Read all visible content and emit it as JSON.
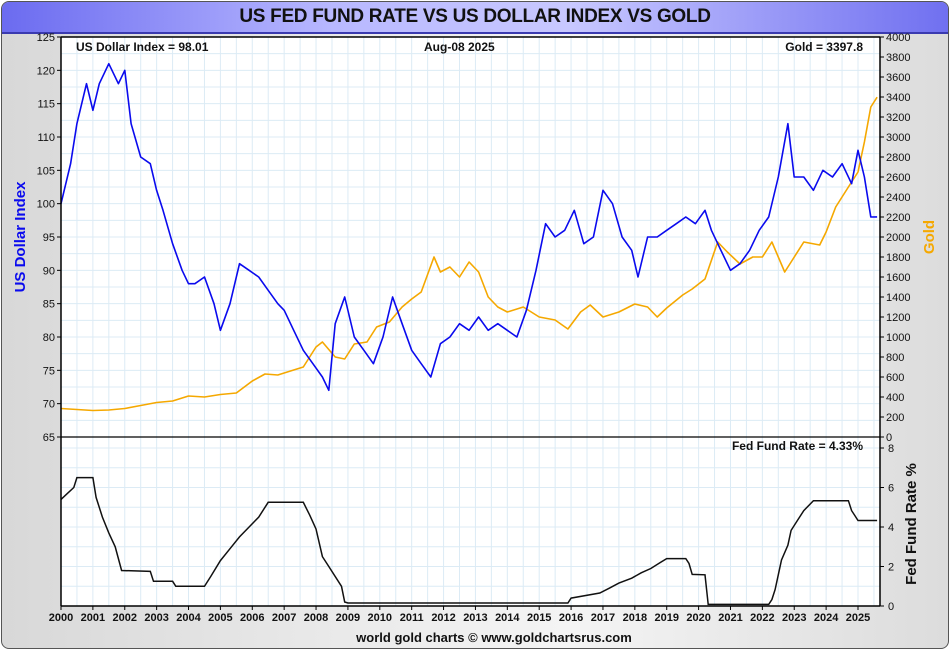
{
  "title": "US FED FUND RATE VS US DOLLAR INDEX VS GOLD",
  "footer": "world gold charts © www.goldchartsrus.com",
  "colors": {
    "dollar": "#0a0aee",
    "gold": "#f5a800",
    "fed": "#111111",
    "grid": "#dcebf5"
  },
  "chart_data": [
    {
      "type": "line",
      "title": "US Dollar Index vs Gold",
      "date_label": "Aug-08  2025",
      "readouts": {
        "dollar": "US Dollar Index = 98.01",
        "gold": "Gold = 3397.8"
      },
      "ylabel_left": "US Dollar Index",
      "ylabel_right": "Gold",
      "ylim_left": [
        65,
        125
      ],
      "yticks_left": [
        "65",
        "70",
        "75",
        "80",
        "85",
        "90",
        "95",
        "100",
        "105",
        "110",
        "115",
        "120",
        "125"
      ],
      "ylim_right": [
        0,
        4000
      ],
      "yticks_right": [
        "0",
        "200",
        "400",
        "600",
        "800",
        "1000",
        "1200",
        "1400",
        "1600",
        "1800",
        "2000",
        "2200",
        "2400",
        "2600",
        "2800",
        "3000",
        "3200",
        "3400",
        "3600",
        "3800",
        "4000"
      ],
      "grid": true,
      "series": [
        {
          "name": "US Dollar Index",
          "axis": "left",
          "x": [
            2000.0,
            2000.3,
            2000.5,
            2000.8,
            2001.0,
            2001.2,
            2001.5,
            2001.8,
            2002.0,
            2002.2,
            2002.5,
            2002.8,
            2003.0,
            2003.2,
            2003.5,
            2003.8,
            2004.0,
            2004.2,
            2004.5,
            2004.8,
            2005.0,
            2005.3,
            2005.6,
            2005.9,
            2006.2,
            2006.5,
            2006.8,
            2007.0,
            2007.3,
            2007.6,
            2007.9,
            2008.2,
            2008.4,
            2008.6,
            2008.9,
            2009.2,
            2009.5,
            2009.8,
            2010.1,
            2010.4,
            2010.7,
            2011.0,
            2011.3,
            2011.6,
            2011.9,
            2012.2,
            2012.5,
            2012.8,
            2013.1,
            2013.4,
            2013.7,
            2014.0,
            2014.3,
            2014.6,
            2014.9,
            2015.2,
            2015.5,
            2015.8,
            2016.1,
            2016.4,
            2016.7,
            2017.0,
            2017.3,
            2017.6,
            2017.9,
            2018.1,
            2018.4,
            2018.7,
            2019.0,
            2019.3,
            2019.6,
            2019.9,
            2020.2,
            2020.4,
            2020.7,
            2021.0,
            2021.3,
            2021.6,
            2021.9,
            2022.2,
            2022.5,
            2022.8,
            2023.0,
            2023.3,
            2023.6,
            2023.9,
            2024.2,
            2024.5,
            2024.8,
            2025.0,
            2025.2,
            2025.4,
            2025.6
          ],
          "y": [
            100,
            106,
            112,
            118,
            114,
            118,
            121,
            118,
            120,
            112,
            107,
            106,
            102,
            99,
            94,
            90,
            88,
            88,
            89,
            85,
            81,
            85,
            91,
            90,
            89,
            87,
            85,
            84,
            81,
            78,
            76,
            74,
            72,
            82,
            86,
            80,
            78,
            76,
            80,
            86,
            82,
            78,
            76,
            74,
            79,
            80,
            82,
            81,
            83,
            81,
            82,
            81,
            80,
            84,
            90,
            97,
            95,
            96,
            99,
            94,
            95,
            102,
            100,
            95,
            93,
            89,
            95,
            95,
            96,
            97,
            98,
            97,
            99,
            96,
            93,
            90,
            91,
            93,
            96,
            98,
            104,
            112,
            104,
            104,
            102,
            105,
            104,
            106,
            103,
            108,
            104,
            98,
            98.01
          ]
        },
        {
          "name": "Gold",
          "axis": "right",
          "x": [
            2000.0,
            2000.5,
            2001.0,
            2001.5,
            2002.0,
            2002.5,
            2003.0,
            2003.5,
            2004.0,
            2004.5,
            2005.0,
            2005.5,
            2006.0,
            2006.4,
            2006.8,
            2007.2,
            2007.6,
            2008.0,
            2008.2,
            2008.6,
            2008.9,
            2009.2,
            2009.6,
            2009.9,
            2010.3,
            2010.7,
            2011.0,
            2011.3,
            2011.7,
            2011.9,
            2012.2,
            2012.5,
            2012.8,
            2013.1,
            2013.4,
            2013.7,
            2014.0,
            2014.5,
            2015.0,
            2015.5,
            2015.9,
            2016.3,
            2016.6,
            2017.0,
            2017.5,
            2018.0,
            2018.4,
            2018.7,
            2019.0,
            2019.5,
            2019.8,
            2020.2,
            2020.6,
            2020.9,
            2021.3,
            2021.7,
            2022.0,
            2022.3,
            2022.7,
            2022.9,
            2023.3,
            2023.8,
            2024.0,
            2024.3,
            2024.7,
            2025.0,
            2025.2,
            2025.4,
            2025.6
          ],
          "y": [
            285,
            275,
            265,
            270,
            285,
            315,
            345,
            360,
            410,
            400,
            425,
            440,
            560,
            630,
            620,
            660,
            700,
            900,
            950,
            800,
            780,
            930,
            950,
            1100,
            1150,
            1300,
            1380,
            1450,
            1800,
            1650,
            1700,
            1600,
            1750,
            1650,
            1400,
            1300,
            1250,
            1300,
            1200,
            1170,
            1080,
            1250,
            1320,
            1200,
            1250,
            1330,
            1300,
            1200,
            1290,
            1420,
            1480,
            1580,
            1950,
            1850,
            1730,
            1800,
            1800,
            1950,
            1650,
            1750,
            1950,
            1920,
            2050,
            2300,
            2500,
            2650,
            2950,
            3300,
            3397.8
          ]
        }
      ]
    },
    {
      "type": "line",
      "title": "Fed Fund Rate",
      "readout": "Fed Fund Rate = 4.33%",
      "ylabel": "Fed Fund Rate %",
      "ylim": [
        0,
        8
      ],
      "yticks": [
        "0",
        "2",
        "4",
        "6",
        "8"
      ],
      "xticks": [
        "2000",
        "2001",
        "2002",
        "2003",
        "2004",
        "2005",
        "2006",
        "2007",
        "2008",
        "2009",
        "2010",
        "2011",
        "2012",
        "2013",
        "2014",
        "2015",
        "2016",
        "2017",
        "2018",
        "2019",
        "2020",
        "2021",
        "2022",
        "2023",
        "2024",
        "2025"
      ],
      "grid": true,
      "series": [
        {
          "name": "Fed Fund Rate",
          "x": [
            2000.0,
            2000.2,
            2000.4,
            2000.5,
            2001.0,
            2001.1,
            2001.3,
            2001.5,
            2001.7,
            2001.9,
            2002.8,
            2002.9,
            2003.5,
            2003.6,
            2004.5,
            2004.7,
            2005.0,
            2005.3,
            2005.6,
            2005.9,
            2006.2,
            2006.5,
            2007.6,
            2007.8,
            2008.0,
            2008.2,
            2008.4,
            2008.8,
            2008.9,
            2009.0,
            2015.9,
            2016.0,
            2016.9,
            2017.2,
            2017.5,
            2017.9,
            2018.2,
            2018.5,
            2018.8,
            2019.0,
            2019.6,
            2019.7,
            2019.8,
            2020.2,
            2020.3,
            2022.2,
            2022.3,
            2022.4,
            2022.5,
            2022.6,
            2022.8,
            2022.9,
            2023.1,
            2023.3,
            2023.6,
            2024.7,
            2024.8,
            2024.9,
            2025.0,
            2025.6
          ],
          "y": [
            5.4,
            5.7,
            6.0,
            6.5,
            6.5,
            5.5,
            4.5,
            3.7,
            3.0,
            1.8,
            1.75,
            1.25,
            1.25,
            1.0,
            1.0,
            1.5,
            2.3,
            2.9,
            3.5,
            4.0,
            4.5,
            5.25,
            5.25,
            4.6,
            3.9,
            2.5,
            2.0,
            1.0,
            0.2,
            0.15,
            0.15,
            0.4,
            0.66,
            0.9,
            1.16,
            1.41,
            1.68,
            1.9,
            2.2,
            2.4,
            2.4,
            2.15,
            1.6,
            1.58,
            0.08,
            0.08,
            0.33,
            0.83,
            1.58,
            2.33,
            3.08,
            3.83,
            4.33,
            4.83,
            5.33,
            5.33,
            4.83,
            4.58,
            4.33,
            4.33
          ]
        }
      ]
    }
  ]
}
